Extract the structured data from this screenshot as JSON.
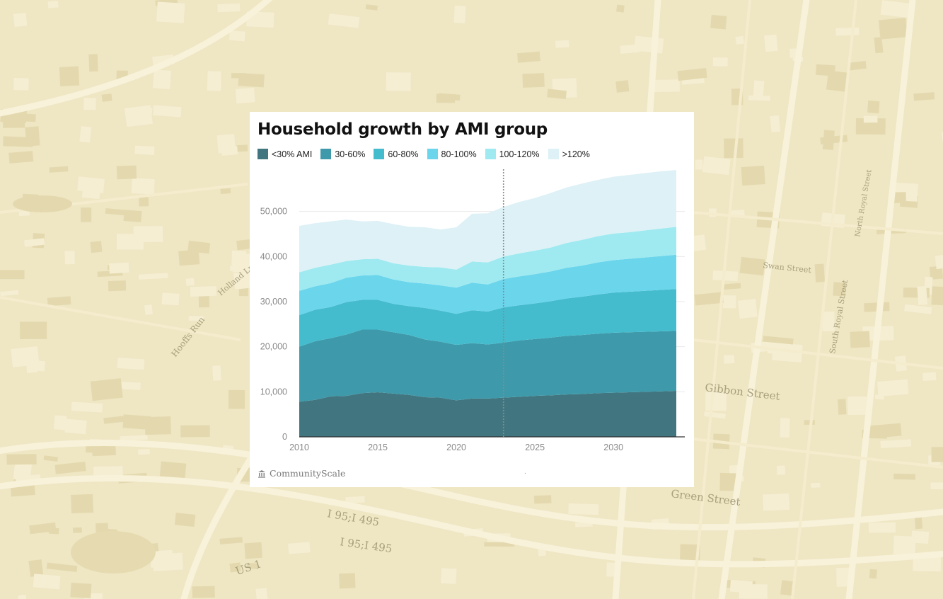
{
  "background": {
    "map_labels": [
      "I 95;I 495",
      "I 95;I 495",
      "US 1",
      "Green Street",
      "Gibbon Street",
      "South Royal Street",
      "Hooffs Run",
      "Holland Ln",
      "North Royal Street",
      "Swan Street"
    ],
    "colors": {
      "base": "#efe6c4",
      "block": "#e4d9ae",
      "road": "#f8f2da",
      "building": "#f5eed3"
    }
  },
  "chart_data": {
    "type": "area",
    "stacked": true,
    "title": "Household growth by AMI group",
    "xlabel": "",
    "ylabel": "",
    "x": [
      2010,
      2011,
      2012,
      2013,
      2014,
      2015,
      2016,
      2017,
      2018,
      2019,
      2020,
      2021,
      2022,
      2023,
      2024,
      2025,
      2026,
      2027,
      2028,
      2029,
      2030,
      2031,
      2032,
      2033,
      2034
    ],
    "xlim": [
      2010,
      2034
    ],
    "ylim": [
      0,
      60000
    ],
    "x_ticks": [
      2010,
      2015,
      2020,
      2025,
      2030
    ],
    "y_ticks": [
      0,
      10000,
      20000,
      30000,
      40000,
      50000
    ],
    "y_tick_labels": [
      "0",
      "10,000",
      "20,000",
      "30,000",
      "40,000",
      "50,000"
    ],
    "divider_x": 2023,
    "grid": "horizontal",
    "legend_position": "top-left",
    "series": [
      {
        "name": "<30% AMI",
        "color": "#417681",
        "values": [
          7800,
          8200,
          9000,
          9100,
          9700,
          9900,
          9600,
          9300,
          8800,
          8700,
          8100,
          8500,
          8500,
          8700,
          8900,
          9100,
          9200,
          9400,
          9500,
          9700,
          9800,
          9900,
          10000,
          10100,
          10200
        ]
      },
      {
        "name": "30-60%",
        "color": "#3e9aaa",
        "values": [
          12200,
          13000,
          12900,
          13600,
          14100,
          13900,
          13600,
          13300,
          12800,
          12400,
          12300,
          12300,
          12000,
          12200,
          12500,
          12600,
          12800,
          13000,
          13100,
          13200,
          13300,
          13300,
          13300,
          13300,
          13300
        ]
      },
      {
        "name": "60-80%",
        "color": "#44bccd",
        "values": [
          7000,
          7000,
          6900,
          7200,
          6600,
          6600,
          6300,
          6400,
          7000,
          6900,
          6900,
          7300,
          7300,
          7800,
          7800,
          7900,
          8100,
          8300,
          8500,
          8700,
          8900,
          9000,
          9100,
          9200,
          9300
        ]
      },
      {
        "name": "80-100%",
        "color": "#6bd5ec",
        "values": [
          5400,
          5200,
          5300,
          5400,
          5400,
          5500,
          5400,
          5300,
          5400,
          5600,
          5800,
          6100,
          6000,
          6300,
          6400,
          6500,
          6600,
          6800,
          6900,
          7100,
          7200,
          7300,
          7400,
          7500,
          7600
        ]
      },
      {
        "name": "100-120%",
        "color": "#9eeaf0",
        "values": [
          4100,
          4100,
          4100,
          3700,
          3600,
          3600,
          3600,
          3700,
          3700,
          4000,
          4000,
          4700,
          4900,
          5000,
          5100,
          5200,
          5300,
          5500,
          5700,
          5800,
          5900,
          5900,
          6000,
          6100,
          6200
        ]
      },
      {
        "name": ">120%",
        "color": "#ddf1f6",
        "values": [
          10300,
          9900,
          9600,
          9200,
          8400,
          8400,
          8700,
          8600,
          8800,
          8400,
          9400,
          10600,
          10900,
          11000,
          11400,
          11700,
          12100,
          12300,
          12500,
          12500,
          12600,
          12700,
          12700,
          12700,
          12600
        ]
      }
    ]
  },
  "footer": {
    "brand": "CommunityScale",
    "brand_icon": "columns-icon",
    "note": "."
  }
}
